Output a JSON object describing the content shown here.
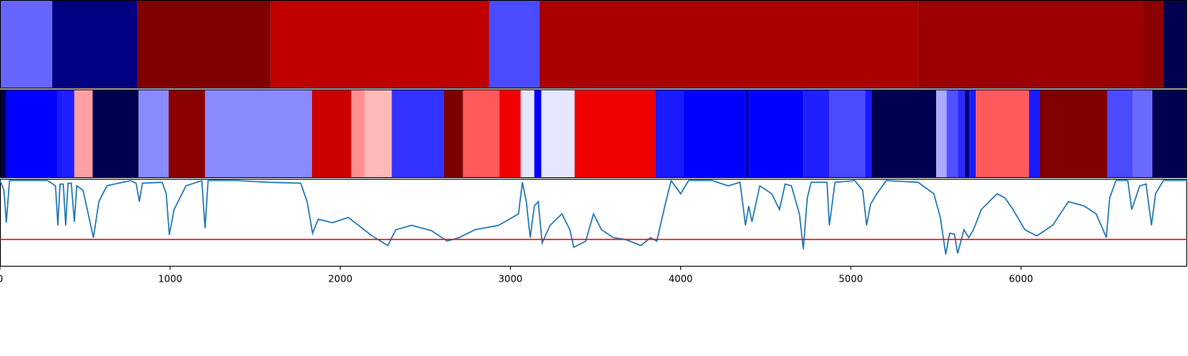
{
  "chart_data": {
    "type": "segments-line",
    "xlim": [
      0,
      6977
    ],
    "xticks": [
      0,
      1000,
      2000,
      3000,
      4000,
      5000,
      6000
    ],
    "ylim": [
      0,
      1
    ],
    "strips": [
      {
        "segments": [
          {
            "start": 0,
            "end": 307,
            "color": "#6666ff"
          },
          {
            "start": 307,
            "end": 809,
            "color": "#000080"
          },
          {
            "start": 809,
            "end": 1591,
            "color": "#800000"
          },
          {
            "start": 1591,
            "end": 2874,
            "color": "#c00000"
          },
          {
            "start": 2874,
            "end": 3172,
            "color": "#4a4aff"
          },
          {
            "start": 3172,
            "end": 5395,
            "color": "#ab0000"
          },
          {
            "start": 5395,
            "end": 6721,
            "color": "#9c0000"
          },
          {
            "start": 6721,
            "end": 6837,
            "color": "#8a0000"
          },
          {
            "start": 6837,
            "end": 6977,
            "color": "#000050"
          }
        ]
      },
      {
        "segments": [
          {
            "start": 0,
            "end": 37,
            "color": "#000050"
          },
          {
            "start": 37,
            "end": 335,
            "color": "#0000ff"
          },
          {
            "start": 335,
            "end": 372,
            "color": "#1a1aff"
          },
          {
            "start": 372,
            "end": 437,
            "color": "#2020ff"
          },
          {
            "start": 437,
            "end": 544,
            "color": "#ffa0a0"
          },
          {
            "start": 544,
            "end": 814,
            "color": "#000050"
          },
          {
            "start": 814,
            "end": 991,
            "color": "#8a8aff"
          },
          {
            "start": 991,
            "end": 1205,
            "color": "#8b0000"
          },
          {
            "start": 1205,
            "end": 1833,
            "color": "#8a8aff"
          },
          {
            "start": 1833,
            "end": 2065,
            "color": "#cc0000"
          },
          {
            "start": 2065,
            "end": 2144,
            "color": "#ff9090"
          },
          {
            "start": 2144,
            "end": 2302,
            "color": "#ffb8b8"
          },
          {
            "start": 2302,
            "end": 2609,
            "color": "#3333ff"
          },
          {
            "start": 2609,
            "end": 2721,
            "color": "#7a0000"
          },
          {
            "start": 2721,
            "end": 2935,
            "color": "#ff5a5a"
          },
          {
            "start": 2935,
            "end": 3060,
            "color": "#f00000"
          },
          {
            "start": 3060,
            "end": 3140,
            "color": "#e6e6ff"
          },
          {
            "start": 3140,
            "end": 3181,
            "color": "#0000ff"
          },
          {
            "start": 3181,
            "end": 3377,
            "color": "#e6e6ff"
          },
          {
            "start": 3377,
            "end": 3777,
            "color": "#f00000"
          },
          {
            "start": 3777,
            "end": 3851,
            "color": "#f00000"
          },
          {
            "start": 3851,
            "end": 4019,
            "color": "#1a1aff"
          },
          {
            "start": 4019,
            "end": 4377,
            "color": "#0000ff"
          },
          {
            "start": 4377,
            "end": 4405,
            "color": "#0000c0"
          },
          {
            "start": 4405,
            "end": 4721,
            "color": "#0000ff"
          },
          {
            "start": 4721,
            "end": 4874,
            "color": "#2020ff"
          },
          {
            "start": 4874,
            "end": 5084,
            "color": "#4a4aff"
          },
          {
            "start": 5084,
            "end": 5121,
            "color": "#1a1aff"
          },
          {
            "start": 5121,
            "end": 5502,
            "color": "#000050"
          },
          {
            "start": 5502,
            "end": 5563,
            "color": "#aaaaff"
          },
          {
            "start": 5563,
            "end": 5628,
            "color": "#5050ff"
          },
          {
            "start": 5628,
            "end": 5670,
            "color": "#2a2aff"
          },
          {
            "start": 5670,
            "end": 5698,
            "color": "#000080"
          },
          {
            "start": 5698,
            "end": 5735,
            "color": "#1a1aff"
          },
          {
            "start": 5735,
            "end": 6047,
            "color": "#ff5a5a"
          },
          {
            "start": 6047,
            "end": 6107,
            "color": "#1a1aff"
          },
          {
            "start": 6107,
            "end": 6507,
            "color": "#800000"
          },
          {
            "start": 6507,
            "end": 6656,
            "color": "#4a4aff"
          },
          {
            "start": 6656,
            "end": 6772,
            "color": "#6a6aff"
          },
          {
            "start": 6772,
            "end": 6977,
            "color": "#000050"
          }
        ]
      }
    ],
    "series": [
      {
        "color": "#1f77b4",
        "x": [
          0,
          23,
          37,
          56,
          279,
          326,
          340,
          353,
          372,
          386,
          400,
          419,
          437,
          451,
          488,
          549,
          581,
          628,
          767,
          800,
          819,
          837,
          953,
          977,
          995,
          1023,
          1093,
          1186,
          1205,
          1223,
          1395,
          1581,
          1767,
          1805,
          1837,
          1870,
          1953,
          2047,
          2140,
          2186,
          2279,
          2326,
          2419,
          2535,
          2628,
          2698,
          2791,
          2930,
          3047,
          3070,
          3093,
          3116,
          3140,
          3163,
          3186,
          3233,
          3302,
          3349,
          3372,
          3442,
          3488,
          3535,
          3605,
          3674,
          3767,
          3823,
          3860,
          3907,
          3944,
          4000,
          4047,
          4186,
          4279,
          4349,
          4381,
          4400,
          4419,
          4465,
          4535,
          4581,
          4614,
          4651,
          4698,
          4721,
          4744,
          4767,
          4860,
          4874,
          4907,
          5023,
          5070,
          5093,
          5116,
          5153,
          5209,
          5395,
          5488,
          5526,
          5558,
          5581,
          5609,
          5628,
          5665,
          5693,
          5721,
          5767,
          5860,
          5907,
          5953,
          6023,
          6093,
          6186,
          6279,
          6372,
          6442,
          6502,
          6521,
          6558,
          6628,
          6651,
          6698,
          6735,
          6767,
          6791,
          6837,
          6977
        ],
        "values": [
          0.98,
          0.87,
          0.5,
          0.98,
          0.98,
          0.92,
          0.47,
          0.94,
          0.94,
          0.47,
          0.95,
          0.95,
          0.51,
          0.92,
          0.87,
          0.33,
          0.74,
          0.92,
          0.98,
          0.95,
          0.74,
          0.95,
          0.96,
          0.83,
          0.36,
          0.65,
          0.92,
          0.98,
          0.44,
          0.98,
          0.98,
          0.96,
          0.95,
          0.74,
          0.38,
          0.54,
          0.5,
          0.56,
          0.42,
          0.35,
          0.24,
          0.42,
          0.47,
          0.41,
          0.29,
          0.33,
          0.42,
          0.47,
          0.6,
          0.96,
          0.74,
          0.33,
          0.69,
          0.74,
          0.27,
          0.47,
          0.6,
          0.42,
          0.22,
          0.29,
          0.6,
          0.42,
          0.33,
          0.31,
          0.24,
          0.33,
          0.29,
          0.69,
          0.98,
          0.83,
          0.98,
          0.98,
          0.92,
          0.96,
          0.47,
          0.69,
          0.51,
          0.92,
          0.83,
          0.65,
          0.94,
          0.92,
          0.6,
          0.2,
          0.78,
          0.96,
          0.96,
          0.47,
          0.96,
          0.98,
          0.87,
          0.47,
          0.71,
          0.83,
          0.98,
          0.96,
          0.83,
          0.56,
          0.14,
          0.38,
          0.37,
          0.15,
          0.42,
          0.33,
          0.42,
          0.65,
          0.83,
          0.78,
          0.65,
          0.42,
          0.35,
          0.47,
          0.74,
          0.69,
          0.6,
          0.33,
          0.78,
          0.98,
          0.98,
          0.65,
          0.92,
          0.94,
          0.47,
          0.83,
          0.98,
          0.98
        ]
      }
    ],
    "threshold": {
      "value": 0.31,
      "color": "#ff0000"
    }
  }
}
